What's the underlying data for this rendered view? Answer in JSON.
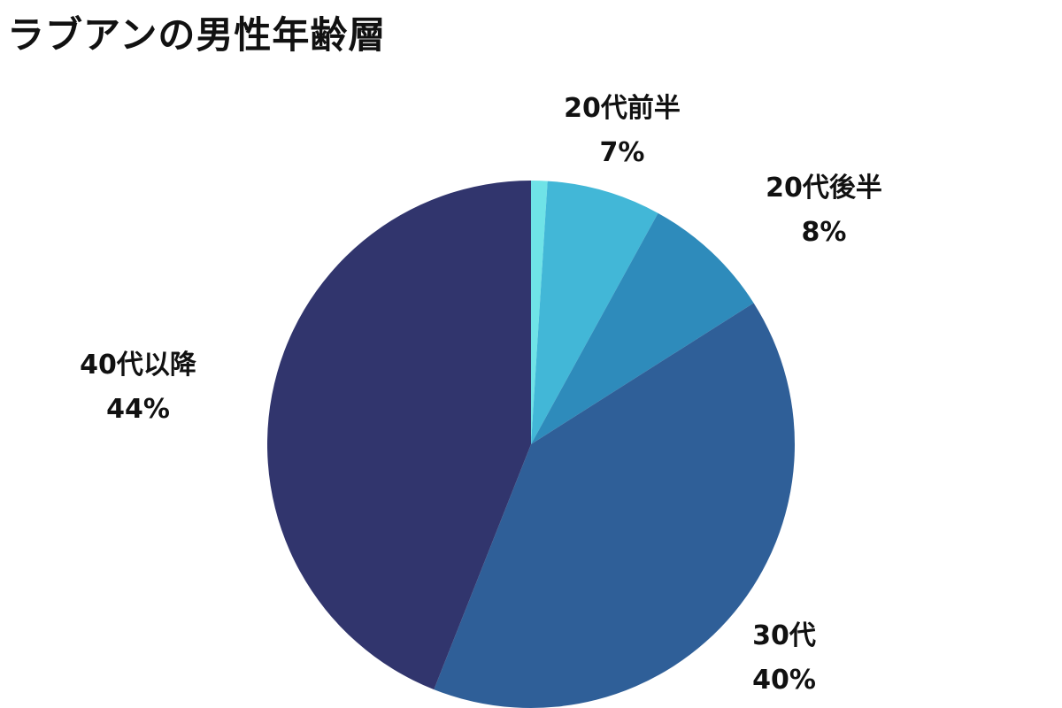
{
  "chart_data": {
    "type": "pie",
    "title": "ラブアンの男性年齢層",
    "slices": [
      {
        "label": "",
        "value": 1,
        "percent_label": "",
        "color": "#6fe3e7"
      },
      {
        "label": "20代前半",
        "value": 7,
        "percent_label": "7%",
        "color": "#42b7d7"
      },
      {
        "label": "20代後半",
        "value": 8,
        "percent_label": "8%",
        "color": "#2e8bbb"
      },
      {
        "label": "30代",
        "value": 40,
        "percent_label": "40%",
        "color": "#2f5f98"
      },
      {
        "label": "40代以降",
        "value": 44,
        "percent_label": "44%",
        "color": "#31356d"
      }
    ],
    "start_angle_deg": 0,
    "direction": "clockwise",
    "legend": "none"
  }
}
